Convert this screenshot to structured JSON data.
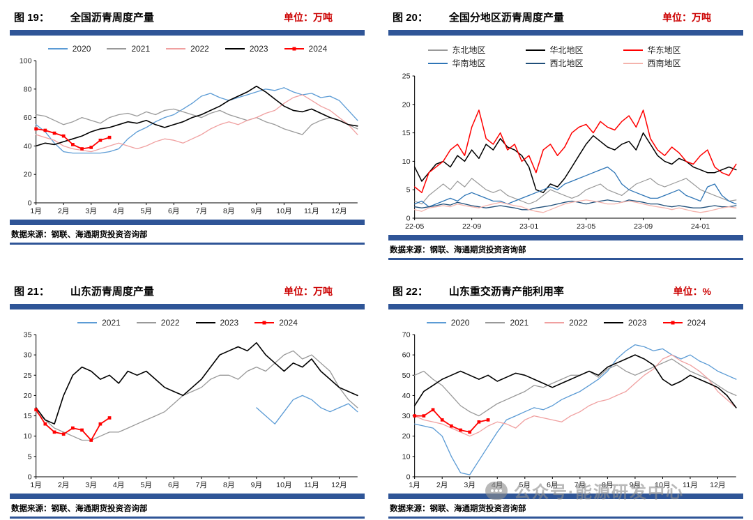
{
  "footer": {
    "source": "数据来源：钢联、海通期货投资咨询部"
  },
  "watermark": {
    "icon": "chat-bubble-icon",
    "text": "公众号·能源研发中心"
  },
  "colors": {
    "accent_bar": "#2f5597",
    "unit_red": "#cc0000"
  },
  "chart_data": [
    {
      "type": "line",
      "fig_label": "图 19：",
      "title": "全国沥青周度产量",
      "unit_label": "单位：万吨",
      "legend_position": "top",
      "grid": false,
      "ylim": [
        0,
        100
      ],
      "y_step": 20,
      "n_points": 36,
      "x_ticks": [
        {
          "label": "1月",
          "at": 0
        },
        {
          "label": "2月",
          "at": 3
        },
        {
          "label": "3月",
          "at": 6
        },
        {
          "label": "4月",
          "at": 9
        },
        {
          "label": "5月",
          "at": 12
        },
        {
          "label": "6月",
          "at": 15
        },
        {
          "label": "7月",
          "at": 18
        },
        {
          "label": "8月",
          "at": 21
        },
        {
          "label": "9月",
          "at": 24
        },
        {
          "label": "10月",
          "at": 27
        },
        {
          "label": "11月",
          "at": 30
        },
        {
          "label": "12月",
          "at": 33
        }
      ],
      "series": [
        {
          "name": "2020",
          "color": "#5b9bd5",
          "width": 1.3,
          "values": [
            55,
            50,
            42,
            36,
            35,
            35,
            35,
            35,
            36,
            38,
            45,
            50,
            53,
            57,
            60,
            62,
            66,
            70,
            75,
            77,
            74,
            72,
            74,
            76,
            78,
            80,
            79,
            81,
            78,
            76,
            77,
            74,
            75,
            72,
            65,
            58
          ]
        },
        {
          "name": "2021",
          "color": "#999999",
          "width": 1.3,
          "values": [
            62,
            61,
            58,
            55,
            57,
            60,
            58,
            56,
            60,
            62,
            63,
            61,
            64,
            62,
            65,
            66,
            64,
            62,
            60,
            63,
            65,
            62,
            60,
            58,
            60,
            57,
            55,
            52,
            50,
            48,
            55,
            58,
            60,
            58,
            55,
            52
          ]
        },
        {
          "name": "2022",
          "color": "#f0a0a0",
          "width": 1.3,
          "values": [
            48,
            46,
            44,
            40,
            38,
            37,
            36,
            38,
            40,
            42,
            40,
            38,
            40,
            43,
            45,
            44,
            42,
            45,
            48,
            52,
            55,
            57,
            55,
            58,
            60,
            63,
            65,
            70,
            74,
            76,
            72,
            68,
            65,
            60,
            55,
            48
          ]
        },
        {
          "name": "2023",
          "color": "#000000",
          "width": 1.6,
          "values": [
            40,
            42,
            41,
            43,
            45,
            47,
            50,
            52,
            53,
            55,
            57,
            56,
            58,
            55,
            53,
            55,
            57,
            60,
            62,
            65,
            68,
            72,
            75,
            78,
            82,
            78,
            73,
            68,
            65,
            64,
            66,
            63,
            60,
            58,
            55,
            54
          ]
        },
        {
          "name": "2024",
          "color": "#ff0000",
          "width": 1.8,
          "marker": true,
          "values": [
            52,
            51,
            49,
            47,
            41,
            38,
            39,
            44,
            46
          ]
        }
      ]
    },
    {
      "type": "line",
      "fig_label": "图 20：",
      "title": "全国分地区沥青周度产量",
      "unit_label": "单位：万吨",
      "legend_position": "top",
      "grid": false,
      "ylim": [
        0,
        25
      ],
      "y_step": 5,
      "n_points": 46,
      "x_ticks": [
        {
          "label": "22-05",
          "at": 0
        },
        {
          "label": "22-09",
          "at": 8
        },
        {
          "label": "23-01",
          "at": 16
        },
        {
          "label": "23-05",
          "at": 24
        },
        {
          "label": "23-09",
          "at": 32
        },
        {
          "label": "24-01",
          "at": 40
        }
      ],
      "series": [
        {
          "name": "东北地区",
          "color": "#999999",
          "width": 1.2,
          "values": [
            3,
            2.5,
            4,
            5,
            6,
            5,
            6.5,
            5.5,
            7,
            6,
            5,
            4.5,
            5,
            4,
            3.5,
            3,
            2.5,
            3,
            4,
            5,
            4.5,
            4,
            3.5,
            4,
            5,
            5.5,
            6,
            5,
            4.5,
            4,
            5,
            6,
            6.5,
            7,
            6,
            5.5,
            6,
            6.5,
            7,
            6,
            5,
            4.5,
            4,
            3.5,
            3,
            3.2
          ]
        },
        {
          "name": "华北地区",
          "color": "#000000",
          "width": 1.5,
          "values": [
            9,
            6.5,
            8,
            9.5,
            10,
            9,
            11,
            10,
            12,
            10.5,
            13,
            12,
            14,
            12.5,
            12,
            11,
            9,
            5,
            4.5,
            6,
            5.5,
            7,
            9,
            11,
            13,
            14.5,
            13.5,
            12.5,
            12,
            13,
            13.5,
            12,
            15,
            13,
            11,
            10,
            9.5,
            10.5,
            10,
            9,
            8.5,
            8,
            8,
            8.5,
            9,
            8.5
          ]
        },
        {
          "name": "华东地区",
          "color": "#ff0000",
          "width": 1.5,
          "values": [
            5.5,
            4.5,
            8,
            9,
            10,
            12,
            13,
            11,
            16,
            19,
            14,
            13,
            15,
            12,
            13,
            10,
            11,
            8,
            12,
            13,
            11,
            12.5,
            15,
            16,
            16.5,
            15,
            17,
            16,
            15.5,
            17,
            18,
            16,
            19,
            14,
            12,
            11,
            12.5,
            11.5,
            10,
            9.5,
            11,
            12,
            9,
            8,
            7.5,
            9.5
          ]
        },
        {
          "name": "华南地区",
          "color": "#2e75b6",
          "width": 1.3,
          "values": [
            2.5,
            3,
            2,
            2.5,
            3,
            3.5,
            3,
            4,
            4.5,
            4,
            3.5,
            3,
            3,
            2.5,
            3,
            3.5,
            4,
            4.5,
            5,
            5.5,
            5,
            6,
            6.5,
            7,
            7.5,
            8,
            8.5,
            9,
            8,
            6,
            5,
            4.5,
            4,
            3.5,
            3.5,
            4,
            4.5,
            5,
            4,
            3.5,
            3,
            5.5,
            6,
            4,
            3,
            2.5
          ]
        },
        {
          "name": "西北地区",
          "color": "#1f4e79",
          "width": 1.3,
          "values": [
            2,
            1.8,
            2,
            2.2,
            2.5,
            2.3,
            2.8,
            2.5,
            2.2,
            2,
            1.8,
            2,
            2.2,
            2,
            1.8,
            1.5,
            1.5,
            1.8,
            2,
            2.2,
            2.5,
            2.8,
            3,
            2.8,
            2.5,
            2.8,
            3,
            3.2,
            3,
            2.8,
            3.2,
            3,
            2.8,
            2.5,
            2.5,
            2.2,
            2,
            2.2,
            2,
            1.8,
            1.8,
            2,
            2.2,
            2,
            2,
            2.2
          ]
        },
        {
          "name": "西南地区",
          "color": "#f4b3ac",
          "width": 1.3,
          "values": [
            1.5,
            1.2,
            1.8,
            2,
            2.2,
            2,
            2.5,
            2.2,
            2,
            1.8,
            2.2,
            2.5,
            2.8,
            2.5,
            2.2,
            2,
            1.5,
            1.2,
            1,
            1.5,
            2,
            2.5,
            2.8,
            3,
            3.2,
            3,
            2.8,
            2.5,
            2.5,
            2.8,
            3,
            2.8,
            2.5,
            2.2,
            2,
            1.8,
            1.5,
            1.8,
            1.5,
            1.2,
            1,
            1.2,
            1.5,
            1.8,
            2,
            1.8
          ]
        }
      ]
    },
    {
      "type": "line",
      "fig_label": "图 21：",
      "title": "山东沥青周度产量",
      "unit_label": "单位：万吨",
      "legend_position": "top",
      "grid": false,
      "ylim": [
        0,
        35
      ],
      "y_step": 5,
      "n_points": 36,
      "x_ticks": [
        {
          "label": "1月",
          "at": 0
        },
        {
          "label": "2月",
          "at": 3
        },
        {
          "label": "3月",
          "at": 6
        },
        {
          "label": "4月",
          "at": 9
        },
        {
          "label": "5月",
          "at": 12
        },
        {
          "label": "6月",
          "at": 15
        },
        {
          "label": "7月",
          "at": 18
        },
        {
          "label": "8月",
          "at": 21
        },
        {
          "label": "9月",
          "at": 24
        },
        {
          "label": "10月",
          "at": 27
        },
        {
          "label": "11月",
          "at": 30
        },
        {
          "label": "12月",
          "at": 33
        }
      ],
      "series": [
        {
          "name": "2021",
          "color": "#5b9bd5",
          "width": 1.3,
          "start": 24,
          "values": [
            17,
            15,
            13,
            16,
            19,
            20,
            19,
            17,
            16,
            17,
            18,
            16
          ]
        },
        {
          "name": "2022",
          "color": "#999999",
          "width": 1.3,
          "values": [
            16,
            14,
            12,
            11,
            10,
            9,
            9,
            10,
            11,
            11,
            12,
            13,
            14,
            15,
            16,
            18,
            20,
            21,
            22,
            24,
            25,
            25,
            24,
            26,
            27,
            26,
            28,
            30,
            31,
            29,
            30,
            28,
            26,
            22,
            19,
            17
          ]
        },
        {
          "name": "2023",
          "color": "#000000",
          "width": 1.6,
          "values": [
            17,
            14,
            13,
            20,
            25,
            27,
            26,
            24,
            25,
            23,
            26,
            25,
            26,
            24,
            22,
            21,
            20,
            22,
            24,
            27,
            30,
            31,
            32,
            31,
            33,
            30,
            28,
            26,
            28,
            27,
            29,
            26,
            24,
            22,
            21,
            20
          ]
        },
        {
          "name": "2024",
          "color": "#ff0000",
          "width": 1.8,
          "marker": true,
          "values": [
            16.5,
            13,
            11,
            10.5,
            12,
            11.5,
            9,
            13,
            14.5
          ]
        }
      ]
    },
    {
      "type": "line",
      "fig_label": "图 22：",
      "title": "山东重交沥青产能利用率",
      "unit_label": "单位：%",
      "legend_position": "top",
      "grid": false,
      "ylim": [
        0,
        70
      ],
      "y_step": 10,
      "n_points": 36,
      "x_ticks": [
        {
          "label": "1月",
          "at": 0
        },
        {
          "label": "2月",
          "at": 3
        },
        {
          "label": "3月",
          "at": 6
        },
        {
          "label": "4月",
          "at": 9
        },
        {
          "label": "5月",
          "at": 12
        },
        {
          "label": "6月",
          "at": 15
        },
        {
          "label": "7月",
          "at": 18
        },
        {
          "label": "8月",
          "at": 21
        },
        {
          "label": "9月",
          "at": 24
        },
        {
          "label": "10月",
          "at": 27
        },
        {
          "label": "11月",
          "at": 30
        },
        {
          "label": "12月",
          "at": 33
        }
      ],
      "series": [
        {
          "name": "2020",
          "color": "#5b9bd5",
          "width": 1.3,
          "values": [
            26,
            25,
            24,
            20,
            10,
            2,
            1,
            8,
            15,
            22,
            28,
            30,
            32,
            34,
            33,
            35,
            38,
            40,
            42,
            45,
            48,
            52,
            58,
            62,
            65,
            64,
            62,
            63,
            60,
            58,
            60,
            57,
            55,
            52,
            50,
            48
          ]
        },
        {
          "name": "2021",
          "color": "#999999",
          "width": 1.3,
          "values": [
            50,
            52,
            48,
            45,
            40,
            35,
            32,
            30,
            33,
            36,
            38,
            40,
            42,
            45,
            44,
            46,
            48,
            50,
            50,
            52,
            49,
            53,
            55,
            52,
            50,
            52,
            54,
            56,
            58,
            55,
            52,
            50,
            48,
            45,
            42,
            40
          ]
        },
        {
          "name": "2022",
          "color": "#f0a0a0",
          "width": 1.3,
          "values": [
            30,
            28,
            27,
            26,
            24,
            22,
            20,
            22,
            25,
            27,
            26,
            24,
            28,
            30,
            29,
            28,
            27,
            30,
            32,
            35,
            37,
            38,
            40,
            42,
            46,
            50,
            53,
            58,
            60,
            57,
            55,
            52,
            48,
            42,
            38,
            34
          ]
        },
        {
          "name": "2023",
          "color": "#000000",
          "width": 1.6,
          "values": [
            35,
            42,
            45,
            48,
            50,
            52,
            50,
            48,
            50,
            47,
            49,
            51,
            50,
            48,
            46,
            44,
            46,
            48,
            50,
            52,
            50,
            54,
            56,
            58,
            60,
            58,
            55,
            48,
            45,
            47,
            50,
            48,
            46,
            44,
            40,
            34
          ]
        },
        {
          "name": "2024",
          "color": "#ff0000",
          "width": 1.8,
          "marker": true,
          "values": [
            30,
            30,
            33,
            28,
            25,
            23,
            22,
            27,
            28
          ]
        }
      ]
    }
  ]
}
